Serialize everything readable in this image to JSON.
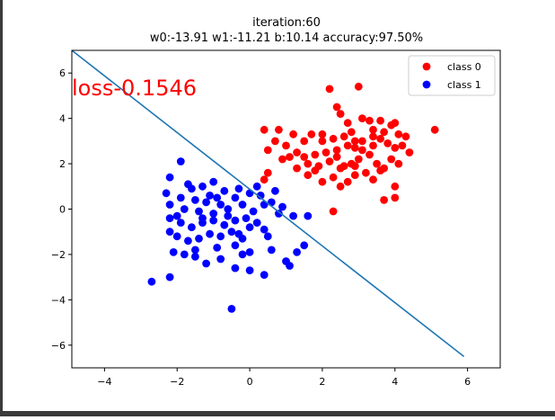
{
  "chart_data": {
    "type": "scatter",
    "title": "iteration:60",
    "subtitle": "w0:-13.91 w1:-11.21 b:10.14 accuracy:97.50%",
    "annotation": "loss-0.1546",
    "xlabel": "",
    "ylabel": "",
    "xlim": [
      -4.9,
      6.9
    ],
    "ylim": [
      -7.0,
      7.0
    ],
    "xticks": [
      "−4",
      "−2",
      "0",
      "2",
      "4",
      "6"
    ],
    "yticks": [
      "−6",
      "−4",
      "−2",
      "0",
      "2",
      "4",
      "6"
    ],
    "xtick_values": [
      -4,
      -2,
      0,
      2,
      4,
      6
    ],
    "ytick_values": [
      -6,
      -4,
      -2,
      0,
      2,
      4,
      6
    ],
    "grid": false,
    "legend_position": "top-right",
    "colors": {
      "class0": "#ff0000",
      "class1": "#0000ff",
      "line": "#1f77b4",
      "annotation": "#ff0000"
    },
    "series": [
      {
        "name": "class 0",
        "points": [
          [
            2.2,
            5.3
          ],
          [
            3.0,
            5.4
          ],
          [
            2.4,
            4.5
          ],
          [
            2.5,
            4.2
          ],
          [
            2.7,
            3.8
          ],
          [
            3.1,
            4.0
          ],
          [
            3.3,
            3.9
          ],
          [
            3.6,
            3.9
          ],
          [
            3.9,
            3.7
          ],
          [
            4.0,
            3.8
          ],
          [
            0.4,
            3.5
          ],
          [
            0.8,
            3.5
          ],
          [
            1.2,
            3.3
          ],
          [
            1.7,
            3.3
          ],
          [
            2.0,
            3.0
          ],
          [
            2.3,
            3.1
          ],
          [
            2.6,
            3.2
          ],
          [
            2.8,
            3.4
          ],
          [
            3.4,
            3.5
          ],
          [
            3.7,
            3.4
          ],
          [
            4.1,
            3.3
          ],
          [
            4.3,
            3.2
          ],
          [
            5.1,
            3.5
          ],
          [
            1.0,
            2.8
          ],
          [
            1.3,
            2.5
          ],
          [
            1.5,
            2.3
          ],
          [
            1.8,
            2.4
          ],
          [
            2.1,
            2.5
          ],
          [
            2.4,
            2.6
          ],
          [
            2.7,
            2.8
          ],
          [
            2.9,
            2.7
          ],
          [
            3.1,
            3.0
          ],
          [
            3.4,
            3.2
          ],
          [
            3.6,
            3.1
          ],
          [
            3.8,
            2.9
          ],
          [
            4.0,
            2.7
          ],
          [
            4.2,
            2.8
          ],
          [
            4.4,
            2.5
          ],
          [
            1.1,
            2.3
          ],
          [
            0.9,
            2.2
          ],
          [
            0.5,
            2.6
          ],
          [
            0.7,
            3.0
          ],
          [
            1.6,
            2.0
          ],
          [
            1.9,
            1.9
          ],
          [
            2.2,
            2.1
          ],
          [
            2.5,
            1.8
          ],
          [
            2.8,
            2.0
          ],
          [
            3.0,
            2.2
          ],
          [
            3.3,
            2.4
          ],
          [
            3.5,
            2.0
          ],
          [
            3.7,
            1.8
          ],
          [
            3.9,
            2.2
          ],
          [
            4.1,
            2.0
          ],
          [
            1.3,
            1.8
          ],
          [
            1.6,
            1.5
          ],
          [
            2.0,
            1.2
          ],
          [
            2.3,
            1.4
          ],
          [
            2.5,
            1.0
          ],
          [
            2.7,
            1.2
          ],
          [
            2.9,
            1.5
          ],
          [
            3.2,
            1.6
          ],
          [
            3.4,
            1.3
          ],
          [
            3.6,
            1.7
          ],
          [
            0.5,
            1.6
          ],
          [
            0.4,
            1.3
          ],
          [
            2.9,
            1.9
          ],
          [
            2.4,
            2.3
          ],
          [
            4.0,
            1.0
          ],
          [
            3.7,
            0.4
          ],
          [
            4.0,
            0.5
          ],
          [
            2.3,
            -0.1
          ],
          [
            1.8,
            1.7
          ],
          [
            2.6,
            1.9
          ],
          [
            3.1,
            2.6
          ],
          [
            3.4,
            2.8
          ],
          [
            1.5,
            3.0
          ],
          [
            2.0,
            3.3
          ],
          [
            2.9,
            3.0
          ]
        ]
      },
      {
        "name": "class 1",
        "points": [
          [
            -1.9,
            2.1
          ],
          [
            -2.2,
            1.4
          ],
          [
            -1.7,
            1.1
          ],
          [
            -1.6,
            0.9
          ],
          [
            -1.3,
            1.0
          ],
          [
            -1.0,
            1.2
          ],
          [
            -0.7,
            0.8
          ],
          [
            -0.3,
            0.9
          ],
          [
            0.0,
            0.7
          ],
          [
            -2.3,
            0.7
          ],
          [
            -1.9,
            0.5
          ],
          [
            -1.5,
            0.4
          ],
          [
            -1.2,
            0.3
          ],
          [
            -0.8,
            0.2
          ],
          [
            -0.4,
            0.5
          ],
          [
            0.3,
            0.6
          ],
          [
            0.7,
            0.8
          ],
          [
            -2.2,
            0.2
          ],
          [
            -1.8,
            0.0
          ],
          [
            -1.4,
            -0.1
          ],
          [
            -1.0,
            -0.2
          ],
          [
            -0.6,
            0.0
          ],
          [
            -0.2,
            0.2
          ],
          [
            0.1,
            -0.1
          ],
          [
            0.6,
            0.3
          ],
          [
            0.8,
            -0.2
          ],
          [
            1.2,
            -0.3
          ],
          [
            1.6,
            -0.3
          ],
          [
            -2.2,
            -0.4
          ],
          [
            -1.9,
            -0.6
          ],
          [
            -1.6,
            -0.8
          ],
          [
            -1.3,
            -0.6
          ],
          [
            -1.0,
            -0.5
          ],
          [
            -0.7,
            -0.7
          ],
          [
            -0.4,
            -0.5
          ],
          [
            -0.1,
            -0.4
          ],
          [
            0.2,
            -0.6
          ],
          [
            0.4,
            -0.9
          ],
          [
            -2.0,
            -1.2
          ],
          [
            -1.7,
            -1.4
          ],
          [
            -1.4,
            -1.3
          ],
          [
            -1.1,
            -1.1
          ],
          [
            -0.8,
            -1.2
          ],
          [
            -0.5,
            -1.0
          ],
          [
            -0.2,
            -1.3
          ],
          [
            0.0,
            -0.8
          ],
          [
            0.5,
            -1.2
          ],
          [
            -2.1,
            -1.9
          ],
          [
            -1.8,
            -2.0
          ],
          [
            -1.5,
            -1.8
          ],
          [
            -0.9,
            -1.7
          ],
          [
            -0.4,
            -1.6
          ],
          [
            0.0,
            -1.9
          ],
          [
            0.6,
            -1.8
          ],
          [
            -1.2,
            -2.4
          ],
          [
            -0.8,
            -2.2
          ],
          [
            -0.2,
            -2.0
          ],
          [
            0.0,
            -2.7
          ],
          [
            0.4,
            -2.9
          ],
          [
            1.0,
            -2.3
          ],
          [
            1.1,
            -2.5
          ],
          [
            1.5,
            -1.6
          ],
          [
            1.3,
            -1.9
          ],
          [
            -2.7,
            -3.2
          ],
          [
            -2.2,
            -3.0
          ],
          [
            -0.5,
            -4.4
          ],
          [
            -2.2,
            -1.0
          ],
          [
            -0.6,
            -0.3
          ],
          [
            0.9,
            0.1
          ],
          [
            -1.3,
            -0.4
          ],
          [
            -0.9,
            0.5
          ],
          [
            0.2,
            1.0
          ],
          [
            -0.4,
            -2.6
          ],
          [
            -1.5,
            -2.1
          ],
          [
            0.4,
            0.2
          ],
          [
            -2.0,
            -0.3
          ],
          [
            -1.1,
            0.6
          ],
          [
            -0.3,
            -1.1
          ]
        ]
      }
    ],
    "decision_line": {
      "x": [
        -4.9,
        5.9
      ],
      "y": [
        7.0,
        -6.5
      ]
    }
  }
}
